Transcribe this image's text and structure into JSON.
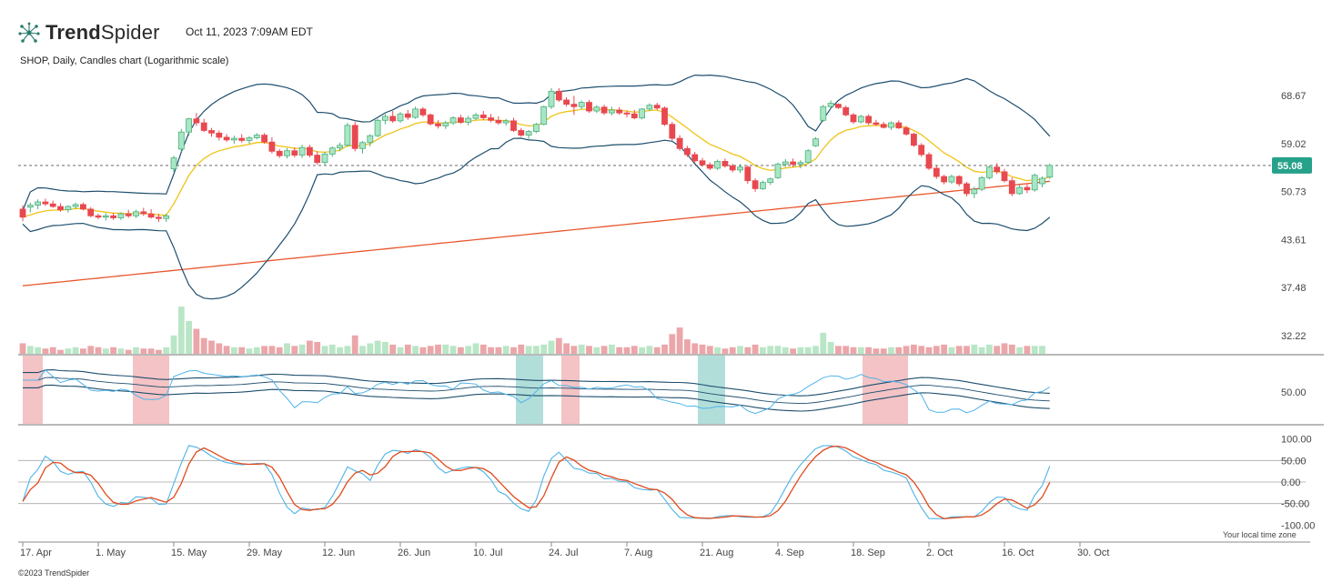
{
  "header": {
    "brand_bold": "Trend",
    "brand_light": "Spider",
    "timestamp": "Oct 11, 2023 7:09AM EDT",
    "subtitle": "SHOP, Daily, Candles chart (Logarithmic scale)"
  },
  "footer": {
    "copyright": "©2023 TrendSpider",
    "local_time_note": "Your local time zone"
  },
  "colors": {
    "up": "#4caf7d",
    "up_fill": "#a8e6c4",
    "down": "#e8484f",
    "bb": "#1e4e6e",
    "ema": "#f0c419",
    "sma200": "#e8572e",
    "rsi": "#4fb3e8",
    "stoch_d": "#e04a1c",
    "last_price_bg": "#26a18a",
    "shade_red": "#f2b8bb",
    "shade_teal": "#a5d8d4"
  },
  "chart_data": {
    "type": "candlestick",
    "ticker": "SHOP",
    "interval": "Daily",
    "scale": "logarithmic",
    "last_price": "55.08",
    "price_axis_ticks": [
      "68.67",
      "59.02",
      "50.73",
      "43.61",
      "37.48",
      "32.22"
    ],
    "x_tick_labels": [
      "17. Apr",
      "1. May",
      "15. May",
      "29. May",
      "12. Jun",
      "26. Jun",
      "10. Jul",
      "24. Jul",
      "7. Aug",
      "21. Aug",
      "4. Sep",
      "18. Sep",
      "2. Oct",
      "16. Oct",
      "30. Oct"
    ],
    "rsi_axis_ticks": [
      "50.00"
    ],
    "stoch_axis_ticks": [
      "100.00",
      "50.00",
      "0.00",
      "-50.00",
      "-100.00"
    ],
    "candles": [
      [
        48.0,
        48.6,
        46.2,
        46.8
      ],
      [
        48.3,
        49.0,
        47.5,
        48.6
      ],
      [
        48.6,
        49.5,
        48.0,
        49.1
      ],
      [
        49.1,
        49.6,
        48.5,
        48.8
      ],
      [
        48.8,
        49.3,
        48.2,
        48.4
      ],
      [
        48.4,
        48.9,
        47.6,
        47.9
      ],
      [
        47.9,
        48.6,
        47.5,
        48.4
      ],
      [
        48.4,
        49.0,
        48.0,
        48.7
      ],
      [
        48.7,
        49.0,
        47.8,
        48.0
      ],
      [
        48.0,
        48.3,
        46.8,
        47.0
      ],
      [
        47.0,
        47.3,
        46.5,
        46.8
      ],
      [
        46.8,
        47.4,
        46.3,
        47.0
      ],
      [
        47.0,
        47.4,
        46.4,
        46.7
      ],
      [
        46.7,
        47.5,
        46.4,
        47.3
      ],
      [
        47.3,
        47.9,
        46.7,
        47.0
      ],
      [
        47.0,
        47.9,
        46.7,
        47.6
      ],
      [
        47.6,
        48.2,
        47.0,
        47.3
      ],
      [
        47.3,
        48.0,
        46.6,
        46.8
      ],
      [
        46.8,
        47.3,
        46.1,
        46.6
      ],
      [
        46.6,
        47.3,
        46.1,
        47.0
      ],
      [
        54.5,
        56.8,
        54.0,
        56.4
      ],
      [
        58.0,
        61.8,
        57.5,
        61.2
      ],
      [
        61.2,
        64.0,
        60.5,
        63.8
      ],
      [
        63.8,
        65.0,
        62.4,
        63.0
      ],
      [
        63.0,
        63.8,
        61.2,
        61.5
      ],
      [
        61.5,
        62.0,
        60.3,
        61.0
      ],
      [
        61.0,
        61.5,
        59.6,
        60.2
      ],
      [
        60.2,
        60.8,
        59.3,
        59.7
      ],
      [
        59.7,
        60.5,
        59.0,
        60.0
      ],
      [
        60.0,
        60.8,
        59.2,
        59.6
      ],
      [
        59.6,
        60.4,
        59.0,
        60.1
      ],
      [
        60.1,
        61.0,
        59.8,
        60.6
      ],
      [
        60.6,
        61.0,
        59.0,
        59.3
      ],
      [
        59.3,
        60.2,
        57.2,
        57.6
      ],
      [
        57.6,
        58.0,
        56.4,
        56.8
      ],
      [
        56.8,
        58.2,
        56.3,
        57.7
      ],
      [
        57.7,
        58.3,
        56.5,
        56.9
      ],
      [
        56.9,
        58.8,
        56.4,
        58.3
      ],
      [
        58.3,
        58.8,
        56.5,
        56.9
      ],
      [
        56.9,
        57.6,
        55.2,
        55.6
      ],
      [
        55.6,
        57.5,
        55.0,
        57.1
      ],
      [
        57.1,
        58.5,
        56.6,
        58.2
      ],
      [
        58.2,
        59.2,
        57.6,
        58.7
      ],
      [
        58.7,
        63.0,
        58.4,
        62.5
      ],
      [
        62.5,
        63.2,
        57.6,
        58.1
      ],
      [
        58.1,
        59.5,
        57.2,
        59.2
      ],
      [
        59.2,
        60.8,
        58.5,
        60.5
      ],
      [
        60.5,
        63.8,
        60.2,
        63.5
      ],
      [
        63.5,
        64.8,
        62.7,
        64.3
      ],
      [
        64.3,
        65.4,
        63.0,
        63.4
      ],
      [
        63.4,
        65.2,
        63.0,
        64.8
      ],
      [
        64.8,
        65.6,
        63.6,
        64.1
      ],
      [
        64.1,
        66.3,
        63.8,
        65.8
      ],
      [
        65.8,
        66.2,
        64.2,
        64.6
      ],
      [
        64.6,
        64.9,
        62.5,
        62.8
      ],
      [
        62.8,
        63.5,
        61.9,
        62.4
      ],
      [
        62.4,
        63.4,
        61.8,
        63.0
      ],
      [
        63.0,
        64.3,
        62.6,
        64.0
      ],
      [
        64.0,
        64.6,
        62.8,
        63.1
      ],
      [
        63.1,
        64.4,
        62.5,
        63.9
      ],
      [
        63.9,
        65.0,
        63.5,
        64.6
      ],
      [
        64.6,
        65.4,
        63.6,
        64.0
      ],
      [
        64.0,
        64.8,
        63.1,
        63.5
      ],
      [
        63.5,
        64.3,
        62.6,
        63.0
      ],
      [
        63.0,
        63.8,
        62.4,
        63.4
      ],
      [
        63.4,
        64.0,
        61.2,
        61.5
      ],
      [
        61.5,
        62.0,
        60.3,
        60.6
      ],
      [
        60.6,
        61.6,
        59.9,
        61.3
      ],
      [
        61.3,
        63.0,
        61.0,
        62.7
      ],
      [
        62.7,
        66.5,
        62.5,
        66.3
      ],
      [
        66.3,
        70.3,
        65.8,
        69.6
      ],
      [
        69.6,
        70.3,
        67.3,
        67.7
      ],
      [
        67.7,
        68.3,
        66.3,
        66.8
      ],
      [
        66.8,
        68.6,
        64.6,
        66.3
      ],
      [
        66.3,
        67.6,
        65.8,
        67.2
      ],
      [
        67.2,
        67.7,
        65.0,
        65.4
      ],
      [
        65.4,
        66.6,
        65.0,
        66.2
      ],
      [
        66.2,
        66.7,
        64.6,
        65.0
      ],
      [
        65.0,
        66.3,
        64.5,
        65.6
      ],
      [
        65.6,
        66.2,
        64.6,
        65.0
      ],
      [
        65.0,
        65.5,
        64.1,
        64.8
      ],
      [
        64.8,
        65.6,
        63.7,
        64.0
      ],
      [
        64.0,
        66.0,
        63.7,
        65.8
      ],
      [
        65.8,
        67.0,
        65.4,
        66.6
      ],
      [
        66.6,
        67.1,
        65.6,
        66.0
      ],
      [
        66.0,
        66.3,
        62.4,
        62.7
      ],
      [
        62.7,
        63.2,
        59.6,
        60.0
      ],
      [
        60.0,
        60.6,
        57.7,
        58.1
      ],
      [
        58.1,
        58.6,
        56.6,
        57.0
      ],
      [
        57.0,
        57.5,
        55.5,
        55.9
      ],
      [
        55.9,
        56.4,
        54.9,
        55.2
      ],
      [
        55.2,
        55.6,
        54.3,
        54.6
      ],
      [
        54.6,
        56.1,
        54.3,
        55.8
      ],
      [
        55.8,
        56.3,
        54.7,
        55.0
      ],
      [
        55.0,
        55.4,
        53.9,
        54.3
      ],
      [
        54.3,
        55.3,
        53.8,
        54.8
      ],
      [
        54.8,
        55.1,
        52.0,
        52.5
      ],
      [
        52.5,
        52.9,
        50.7,
        51.2
      ],
      [
        51.2,
        52.5,
        51.0,
        52.2
      ],
      [
        52.2,
        53.0,
        51.8,
        52.8
      ],
      [
        53.0,
        55.6,
        52.8,
        55.3
      ],
      [
        55.3,
        56.2,
        54.8,
        55.7
      ],
      [
        55.7,
        56.3,
        54.8,
        55.3
      ],
      [
        55.3,
        56.0,
        54.6,
        55.6
      ],
      [
        55.6,
        58.0,
        55.4,
        57.7
      ],
      [
        58.6,
        60.2,
        58.4,
        59.9
      ],
      [
        63.5,
        66.7,
        63.2,
        66.3
      ],
      [
        66.3,
        67.6,
        65.8,
        67.0
      ],
      [
        66.8,
        67.0,
        65.8,
        66.1
      ],
      [
        66.1,
        66.5,
        64.3,
        64.6
      ],
      [
        64.6,
        65.0,
        62.8,
        63.2
      ],
      [
        63.2,
        64.6,
        62.9,
        64.3
      ],
      [
        64.3,
        64.7,
        62.6,
        63.0
      ],
      [
        63.0,
        63.6,
        62.4,
        62.7
      ],
      [
        62.7,
        63.2,
        61.9,
        62.1
      ],
      [
        62.1,
        63.3,
        61.6,
        63.0
      ],
      [
        63.0,
        63.5,
        61.8,
        62.0
      ],
      [
        62.0,
        62.4,
        60.5,
        60.8
      ],
      [
        60.8,
        61.1,
        58.4,
        58.7
      ],
      [
        58.7,
        59.1,
        56.6,
        57.0
      ],
      [
        57.0,
        57.4,
        54.3,
        54.6
      ],
      [
        54.6,
        55.0,
        52.8,
        53.2
      ],
      [
        53.2,
        53.5,
        51.9,
        52.3
      ],
      [
        52.3,
        53.5,
        52.0,
        53.2
      ],
      [
        53.2,
        53.4,
        51.6,
        52.0
      ],
      [
        52.0,
        52.3,
        50.0,
        50.4
      ],
      [
        50.4,
        51.5,
        49.7,
        51.1
      ],
      [
        51.1,
        53.3,
        50.8,
        53.0
      ],
      [
        53.0,
        55.1,
        52.7,
        54.8
      ],
      [
        54.8,
        55.5,
        53.6,
        54.0
      ],
      [
        54.0,
        54.5,
        52.2,
        52.5
      ],
      [
        52.5,
        53.0,
        50.0,
        50.4
      ],
      [
        50.4,
        51.8,
        50.2,
        51.4
      ],
      [
        51.4,
        52.0,
        50.5,
        51.0
      ],
      [
        51.0,
        53.7,
        50.7,
        53.4
      ],
      [
        52.0,
        53.2,
        51.4,
        52.9
      ],
      [
        53.1,
        55.4,
        52.8,
        55.08
      ]
    ],
    "volume": [
      8,
      6,
      5,
      4,
      5,
      3,
      4,
      5,
      4,
      6,
      5,
      4,
      5,
      4,
      3,
      5,
      4,
      4,
      3,
      5,
      14,
      36,
      25,
      19,
      12,
      10,
      8,
      6,
      5,
      5,
      4,
      5,
      6,
      6,
      5,
      8,
      6,
      7,
      10,
      9,
      6,
      7,
      5,
      6,
      14,
      6,
      8,
      10,
      9,
      7,
      5,
      7,
      6,
      5,
      6,
      7,
      7,
      6,
      5,
      6,
      8,
      7,
      5,
      5,
      6,
      5,
      7,
      6,
      6,
      7,
      10,
      12,
      8,
      6,
      7,
      6,
      5,
      6,
      7,
      5,
      5,
      6,
      5,
      6,
      5,
      7,
      15,
      20,
      11,
      8,
      7,
      6,
      5,
      4,
      5,
      6,
      5,
      7,
      5,
      6,
      6,
      5,
      4,
      5,
      5,
      6,
      16,
      9,
      6,
      6,
      5,
      5,
      5,
      4,
      4,
      5,
      5,
      6,
      7,
      6,
      5,
      6,
      7,
      5,
      6,
      6,
      7,
      5,
      7,
      6,
      8,
      7,
      5,
      6,
      6,
      6
    ]
  }
}
